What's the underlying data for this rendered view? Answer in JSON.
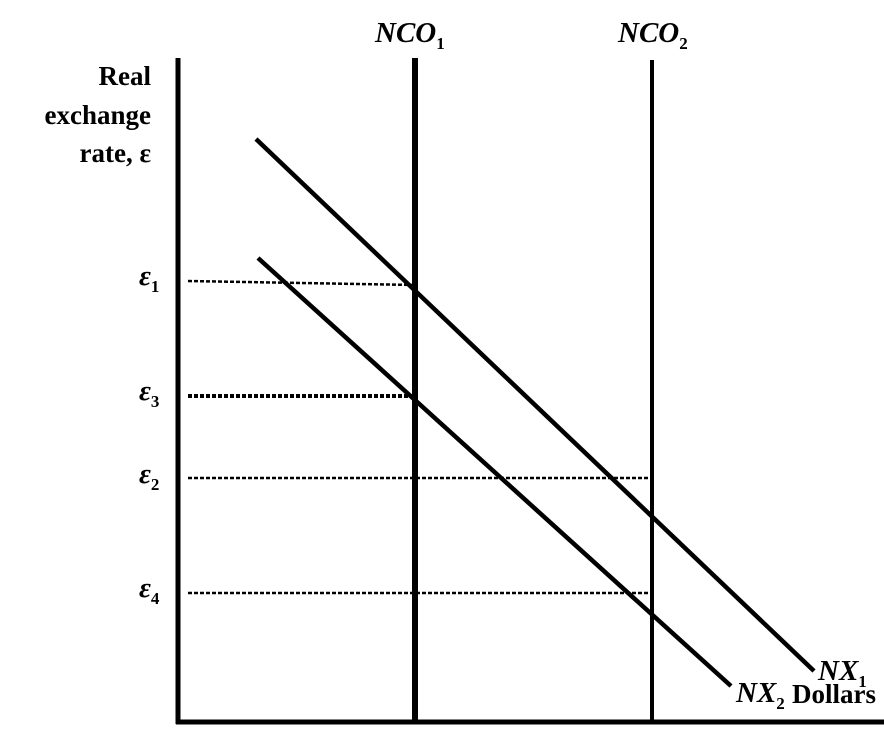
{
  "y_axis_title": [
    "Real",
    "exchange",
    "rate, ε"
  ],
  "x_axis_title": "Dollars",
  "vertical_lines": [
    {
      "base": "NCO",
      "sub": "1"
    },
    {
      "base": "NCO",
      "sub": "2"
    }
  ],
  "demand_curves": [
    {
      "base": "NX",
      "sub": "1"
    },
    {
      "base": "NX",
      "sub": "2"
    }
  ],
  "levels": [
    {
      "base": "ε",
      "sub": "1"
    },
    {
      "base": "ε",
      "sub": "3"
    },
    {
      "base": "ε",
      "sub": "2"
    },
    {
      "base": "ε",
      "sub": "4"
    }
  ]
}
